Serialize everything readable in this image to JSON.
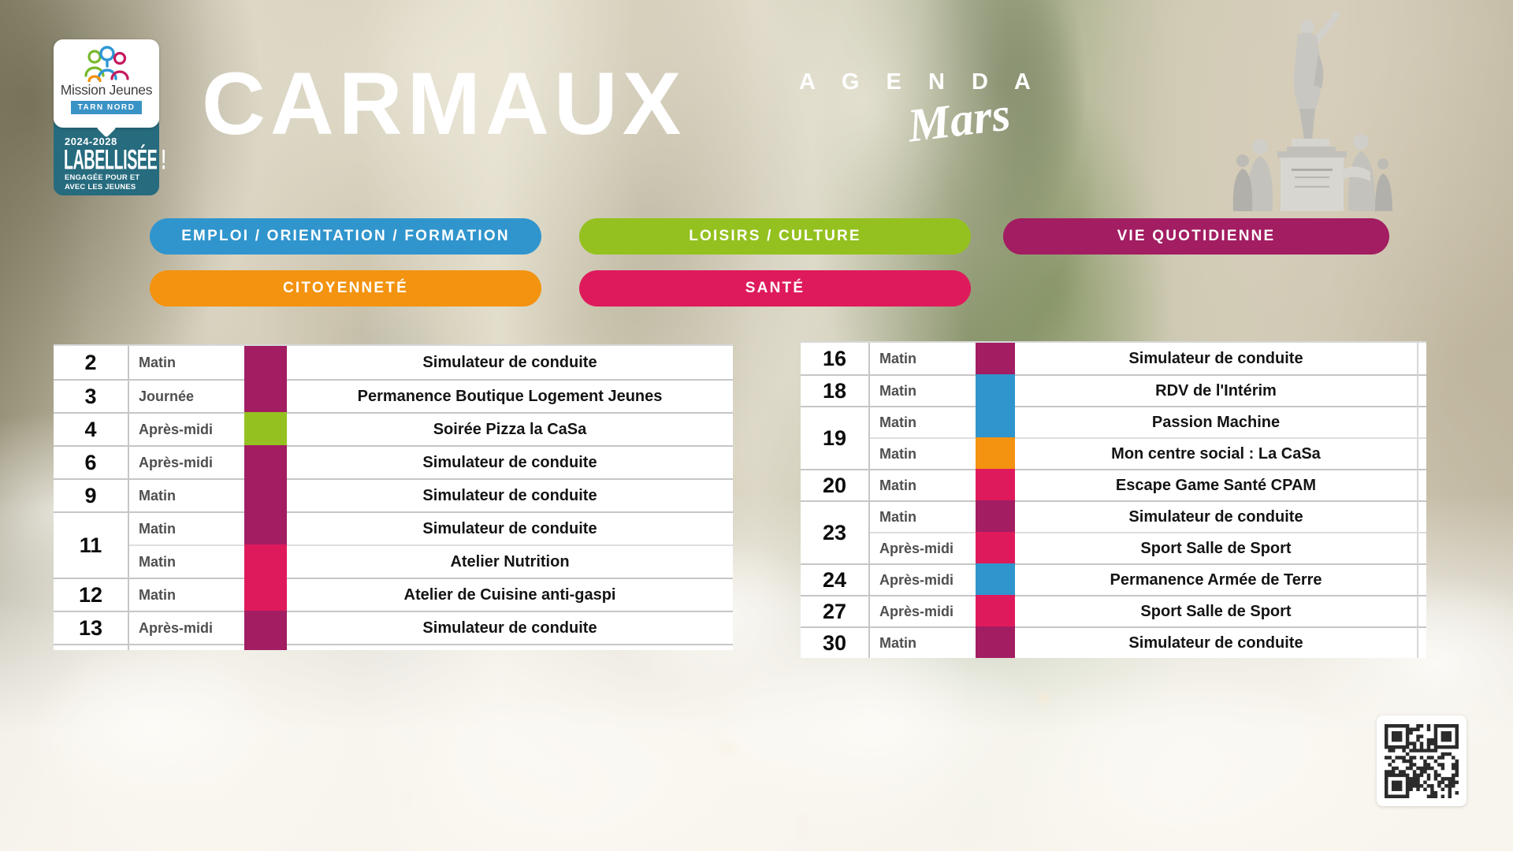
{
  "logo": {
    "brand": "Mission Jeunes",
    "region": "TARN NORD",
    "years": "2024-2028",
    "label": "LABELLISÉE !",
    "subtitle": "ENGAGÉE POUR ET AVEC LES JEUNES",
    "teal": "#266b7e",
    "region_blue": "#3a93c5",
    "people_icon_colors": {
      "green": "#76b82a",
      "blue": "#2e96d5",
      "magenta": "#c51a5e",
      "orange": "#f29200"
    }
  },
  "header": {
    "city": "CARMAUX",
    "agenda_label": "A G E N D A",
    "month": "Mars"
  },
  "categories": [
    {
      "id": "emploi",
      "label": "EMPLOI / ORIENTATION / FORMATION",
      "color": "#3095cd"
    },
    {
      "id": "loisirs",
      "label": "LOISIRS / CULTURE",
      "color": "#94c11f"
    },
    {
      "id": "vie",
      "label": "VIE QUOTIDIENNE",
      "color": "#a21d62"
    },
    {
      "id": "citoyennete",
      "label": "CITOYENNETÉ",
      "color": "#f39310"
    },
    {
      "id": "sante",
      "label": "SANTÉ",
      "color": "#df1a5c"
    }
  ],
  "agenda": {
    "left": [
      {
        "date": "2",
        "slots": [
          {
            "time": "Matin",
            "category": "vie",
            "event": "Simulateur de conduite"
          }
        ]
      },
      {
        "date": "3",
        "slots": [
          {
            "time": "Journée",
            "category": "vie",
            "event": "Permanence Boutique Logement Jeunes"
          }
        ]
      },
      {
        "date": "4",
        "slots": [
          {
            "time": "Après-midi",
            "category": "loisirs",
            "event": "Soirée Pizza la CaSa"
          }
        ]
      },
      {
        "date": "6",
        "slots": [
          {
            "time": "Après-midi",
            "category": "vie",
            "event": "Simulateur de conduite"
          }
        ]
      },
      {
        "date": "9",
        "slots": [
          {
            "time": "Matin",
            "category": "vie",
            "event": "Simulateur de conduite"
          }
        ]
      },
      {
        "date": "11",
        "slots": [
          {
            "time": "Matin",
            "category": "vie",
            "event": "Simulateur de conduite"
          },
          {
            "time": "Matin",
            "category": "sante",
            "event": "Atelier Nutrition"
          }
        ]
      },
      {
        "date": "12",
        "slots": [
          {
            "time": "Matin",
            "category": "sante",
            "event": "Atelier de Cuisine anti-gaspi"
          }
        ]
      },
      {
        "date": "13",
        "slots": [
          {
            "time": "Après-midi",
            "category": "vie",
            "event": "Simulateur de conduite"
          }
        ]
      }
    ],
    "left_bottom_sliver_category": "vie",
    "right": [
      {
        "date": "16",
        "slots": [
          {
            "time": "Matin",
            "category": "vie",
            "event": "Simulateur de conduite"
          }
        ]
      },
      {
        "date": "18",
        "slots": [
          {
            "time": "Matin",
            "category": "emploi",
            "event": "RDV de l'Intérim"
          }
        ]
      },
      {
        "date": "19",
        "slots": [
          {
            "time": "Matin",
            "category": "emploi",
            "event": "Passion Machine"
          },
          {
            "time": "Matin",
            "category": "citoyennete",
            "event": "Mon centre social : La CaSa"
          }
        ]
      },
      {
        "date": "20",
        "slots": [
          {
            "time": "Matin",
            "category": "sante",
            "event": "Escape Game Santé CPAM"
          }
        ]
      },
      {
        "date": "23",
        "slots": [
          {
            "time": "Matin",
            "category": "vie",
            "event": "Simulateur de conduite"
          },
          {
            "time": "Après-midi",
            "category": "sante",
            "event": "Sport Salle de Sport"
          }
        ]
      },
      {
        "date": "24",
        "slots": [
          {
            "time": "Après-midi",
            "category": "emploi",
            "event": "Permanence Armée de Terre"
          }
        ]
      },
      {
        "date": "27",
        "slots": [
          {
            "time": "Après-midi",
            "category": "sante",
            "event": "Sport  Salle de Sport"
          }
        ]
      },
      {
        "date": "30",
        "slots": [
          {
            "time": "Matin",
            "category": "vie",
            "event": "Simulateur de conduite"
          }
        ]
      }
    ]
  }
}
